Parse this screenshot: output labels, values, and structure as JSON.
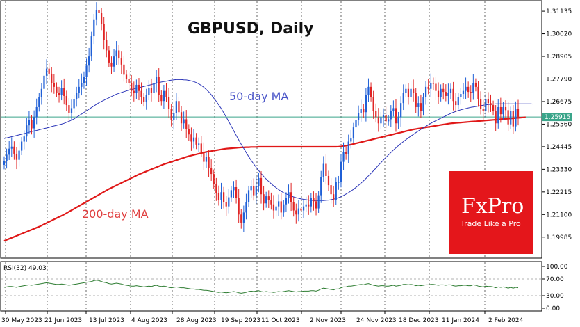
{
  "chart_data": {
    "type": "candlestick",
    "title": "GBPUSD, Daily",
    "symbol": "GBPUSD",
    "timeframe": "Daily",
    "last_price": "1.25915",
    "y_tick_labels": [
      "1.31135",
      "1.30020",
      "1.28905",
      "1.27790",
      "1.26675",
      "1.25560",
      "1.24445",
      "1.23330",
      "1.22215",
      "1.21100",
      "1.19985"
    ],
    "y_ticks": [
      1.31135,
      1.3002,
      1.28905,
      1.2779,
      1.26675,
      1.2556,
      1.24445,
      1.2333,
      1.22215,
      1.211,
      1.19985
    ],
    "ylim": [
      1.1905,
      1.3155
    ],
    "x_tick_labels": [
      "30 May 2023",
      "21 Jun 2023",
      "13 Jul 2023",
      "4 Aug 2023",
      "28 Aug 2023",
      "19 Sep 2023",
      "11 Oct 2023",
      "2 Nov 2023",
      "24 Nov 2023",
      "18 Dec 2023",
      "11 Jan 2024",
      "2 Feb 2024"
    ],
    "annotations": {
      "ma50": "50-day MA",
      "ma200": "200-day MA"
    },
    "colors": {
      "up": "#1f5fd6",
      "down": "#e02424",
      "ma50": "#2b35b8",
      "ma200": "#e01818",
      "last_price_line": "#3aa58a",
      "rsi": "#2e7d32",
      "brand": "#e4161b"
    },
    "rsi": {
      "label": "RSI(32) 49.03",
      "period": 32,
      "value": 49.03,
      "levels": [
        "100.00",
        "70.00",
        "30.00",
        "0.00"
      ]
    },
    "brand": {
      "name": "FxPro",
      "tagline": "Trade Like a Pro"
    },
    "closes": [
      1.2375,
      1.2405,
      1.2435,
      1.2445,
      1.241,
      1.238,
      1.2425,
      1.247,
      1.2495,
      1.255,
      1.2575,
      1.2535,
      1.259,
      1.264,
      1.269,
      1.273,
      1.2795,
      1.283,
      1.2805,
      1.276,
      1.274,
      1.271,
      1.27,
      1.2735,
      1.2695,
      1.265,
      1.261,
      1.2635,
      1.268,
      1.271,
      1.274,
      1.276,
      1.279,
      1.2845,
      1.289,
      1.299,
      1.307,
      1.312,
      1.3105,
      1.305,
      1.297,
      1.292,
      1.286,
      1.284,
      1.289,
      1.292,
      1.288,
      1.285,
      1.28,
      1.278,
      1.276,
      1.272,
      1.271,
      1.275,
      1.272,
      1.269,
      1.2665,
      1.27,
      1.2735,
      1.271,
      1.276,
      1.279,
      1.27,
      1.267,
      1.272,
      1.269,
      1.263,
      1.2575,
      1.261,
      1.267,
      1.2615,
      1.256,
      1.258,
      1.253,
      1.2505,
      1.247,
      1.249,
      1.2455,
      1.246,
      1.242,
      1.237,
      1.2395,
      1.234,
      1.231,
      1.226,
      1.2215,
      1.218,
      1.222,
      1.217,
      1.215,
      1.2195,
      1.223,
      1.2245,
      1.219,
      1.211,
      1.207,
      1.212,
      1.217,
      1.223,
      1.225,
      1.2205,
      1.225,
      1.229,
      1.221,
      1.2165,
      1.22,
      1.218,
      1.216,
      1.213,
      1.215,
      1.2175,
      1.212,
      1.216,
      1.219,
      1.222,
      1.217,
      1.213,
      1.211,
      1.214,
      1.213,
      1.215,
      1.216,
      1.215,
      1.219,
      1.2175,
      1.214,
      1.2205,
      1.2295,
      1.236,
      1.23,
      1.2255,
      1.221,
      1.218,
      1.227,
      1.227,
      1.237,
      1.242,
      1.241,
      1.247,
      1.2485,
      1.254,
      1.2575,
      1.261,
      1.263,
      1.2615,
      1.27,
      1.274,
      1.269,
      1.262,
      1.259,
      1.256,
      1.259,
      1.26,
      1.257,
      1.258,
      1.262,
      1.2635,
      1.256,
      1.259,
      1.266,
      1.271,
      1.273,
      1.269,
      1.273,
      1.271,
      1.264,
      1.266,
      1.262,
      1.269,
      1.274,
      1.273,
      1.276,
      1.2755,
      1.272,
      1.269,
      1.273,
      1.2715,
      1.2695,
      1.271,
      1.273,
      1.267,
      1.265,
      1.269,
      1.2705,
      1.272,
      1.274,
      1.2715,
      1.271,
      1.276,
      1.274,
      1.268,
      1.263,
      1.262,
      1.268,
      1.266,
      1.265,
      1.262,
      1.256,
      1.264,
      1.2605,
      1.264,
      1.2625,
      1.2555,
      1.262,
      1.2545,
      1.263,
      1.2592
    ],
    "ma50": [
      1.2485,
      1.2488,
      1.2491,
      1.2494,
      1.2497,
      1.25,
      1.2503,
      1.2506,
      1.2509,
      1.2512,
      1.2516,
      1.2519,
      1.2522,
      1.2525,
      1.2528,
      1.2531,
      1.2534,
      1.2537,
      1.254,
      1.2544,
      1.2547,
      1.255,
      1.2553,
      1.2556,
      1.256,
      1.2565,
      1.257,
      1.2576,
      1.2582,
      1.259,
      1.2598,
      1.2606,
      1.2614,
      1.2622,
      1.263,
      1.2638,
      1.2646,
      1.2654,
      1.2662,
      1.2668,
      1.2674,
      1.268,
      1.2686,
      1.2692,
      1.2698,
      1.2704,
      1.2708,
      1.2712,
      1.2716,
      1.272,
      1.2724,
      1.2727,
      1.273,
      1.2733,
      1.2736,
      1.2739,
      1.2742,
      1.2745,
      1.2748,
      1.2751,
      1.2755,
      1.2758,
      1.2761,
      1.2764,
      1.2766,
      1.2768,
      1.2771,
      1.2773,
      1.2775,
      1.2776,
      1.2776,
      1.2776,
      1.2775,
      1.2774,
      1.2772,
      1.2769,
      1.2766,
      1.2761,
      1.2755,
      1.2747,
      1.2738,
      1.2727,
      1.2715,
      1.2701,
      1.2685,
      1.2669,
      1.2651,
      1.2633,
      1.2612,
      1.2591,
      1.2569,
      1.2546,
      1.2523,
      1.25,
      1.2478,
      1.2456,
      1.2436,
      1.2416,
      1.2396,
      1.2377,
      1.236,
      1.2343,
      1.2327,
      1.2312,
      1.2298,
      1.2285,
      1.2273,
      1.2262,
      1.2251,
      1.2242,
      1.2233,
      1.2225,
      1.2218,
      1.2212,
      1.2206,
      1.2201,
      1.2197,
      1.2193,
      1.219,
      1.2187,
      1.2185,
      1.2183,
      1.2181,
      1.218,
      1.2179,
      1.2179,
      1.2179,
      1.2179,
      1.2179,
      1.218,
      1.2181,
      1.2183,
      1.2186,
      1.2189,
      1.2193,
      1.2198,
      1.2204,
      1.2211,
      1.2218,
      1.2226,
      1.2234,
      1.2244,
      1.2254,
      1.2265,
      1.2276,
      1.2288,
      1.2301,
      1.2313,
      1.2326,
      1.2339,
      1.2353,
      1.2366,
      1.2379,
      1.2392,
      1.2404,
      1.2416,
      1.2428,
      1.2439,
      1.245,
      1.246,
      1.247,
      1.2479,
      1.2488,
      1.2497,
      1.2505,
      1.2514,
      1.2522,
      1.253,
      1.2538,
      1.2545,
      1.2553,
      1.256,
      1.2567,
      1.2573,
      1.2579,
      1.2585,
      1.2591,
      1.2597,
      1.2603,
      1.2609,
      1.2614,
      1.2619,
      1.2623,
      1.2627,
      1.263,
      1.2633,
      1.2636,
      1.2639,
      1.2641,
      1.2643,
      1.2645,
      1.2647,
      1.2649,
      1.2651,
      1.2653,
      1.2654,
      1.2655,
      1.2656,
      1.2656,
      1.2656,
      1.2656,
      1.2656,
      1.2656,
      1.2656,
      1.2656,
      1.2656,
      1.2656,
      1.2656,
      1.2656,
      1.2656,
      1.2656,
      1.2656,
      1.2655
    ],
    "ma200": [
      1.198,
      1.1985,
      1.199,
      1.1995,
      1.2,
      1.2005,
      1.201,
      1.2015,
      1.202,
      1.2025,
      1.203,
      1.2035,
      1.204,
      1.2045,
      1.205,
      1.2056,
      1.2062,
      1.2068,
      1.2074,
      1.208,
      1.2086,
      1.2092,
      1.2098,
      1.2104,
      1.211,
      1.2117,
      1.2124,
      1.2131,
      1.2138,
      1.2145,
      1.2152,
      1.2159,
      1.2166,
      1.2173,
      1.218,
      1.2187,
      1.2194,
      1.2201,
      1.2208,
      1.2215,
      1.2222,
      1.2229,
      1.2236,
      1.2242,
      1.2248,
      1.2254,
      1.226,
      1.2266,
      1.2272,
      1.2278,
      1.2284,
      1.229,
      1.2296,
      1.2302,
      1.2308,
      1.2313,
      1.2318,
      1.2323,
      1.2328,
      1.2333,
      1.2338,
      1.2343,
      1.2348,
      1.2353,
      1.2358,
      1.2362,
      1.2366,
      1.237,
      1.2374,
      1.2378,
      1.2382,
      1.2386,
      1.239,
      1.2394,
      1.2398,
      1.2401,
      1.2404,
      1.2407,
      1.241,
      1.2413,
      1.2416,
      1.2419,
      1.2421,
      1.2423,
      1.2425,
      1.2427,
      1.2429,
      1.2431,
      1.2433,
      1.2435,
      1.2436,
      1.2437,
      1.2438,
      1.2439,
      1.244,
      1.2441,
      1.2441,
      1.2442,
      1.2442,
      1.2443,
      1.2443,
      1.2443,
      1.2444,
      1.2444,
      1.2444,
      1.2444,
      1.2444,
      1.2444,
      1.2444,
      1.2444,
      1.2444,
      1.2444,
      1.2444,
      1.2444,
      1.2444,
      1.2444,
      1.2444,
      1.2444,
      1.2444,
      1.2444,
      1.2444,
      1.2444,
      1.2444,
      1.2444,
      1.2444,
      1.2444,
      1.2444,
      1.2444,
      1.2444,
      1.2444,
      1.2444,
      1.2444,
      1.2444,
      1.2444,
      1.2445,
      1.2446,
      1.2448,
      1.245,
      1.2452,
      1.2455,
      1.2458,
      1.2461,
      1.2464,
      1.2467,
      1.247,
      1.2473,
      1.2476,
      1.2479,
      1.2482,
      1.2485,
      1.2488,
      1.2491,
      1.2494,
      1.2497,
      1.25,
      1.2503,
      1.2506,
      1.2509,
      1.2512,
      1.2515,
      1.2518,
      1.2521,
      1.2524,
      1.2527,
      1.253,
      1.2532,
      1.2534,
      1.2536,
      1.2538,
      1.254,
      1.2542,
      1.2544,
      1.2546,
      1.2548,
      1.255,
      1.2552,
      1.2554,
      1.2556,
      1.2558,
      1.256,
      1.2561,
      1.2562,
      1.2563,
      1.2564,
      1.2565,
      1.2566,
      1.2567,
      1.2568,
      1.2569,
      1.257,
      1.2571,
      1.2572,
      1.2573,
      1.2574,
      1.2575,
      1.2576,
      1.2577,
      1.2578,
      1.2579,
      1.258,
      1.2581,
      1.2582,
      1.2583,
      1.2584,
      1.2585,
      1.2586,
      1.2587,
      1.2588,
      1.2589,
      1.259
    ],
    "rsi_values": [
      50,
      51,
      52,
      52,
      51,
      50,
      52,
      53,
      54,
      55,
      56,
      55,
      56,
      57,
      58,
      59,
      60,
      61,
      60,
      59,
      58,
      57,
      57,
      58,
      57,
      56,
      55,
      56,
      57,
      58,
      59,
      60,
      61,
      62,
      63,
      64,
      66,
      67,
      66,
      64,
      62,
      61,
      59,
      58,
      59,
      60,
      59,
      58,
      56,
      55,
      54,
      53,
      53,
      54,
      53,
      52,
      51,
      52,
      53,
      52,
      54,
      55,
      53,
      52,
      53,
      52,
      50,
      49,
      50,
      51,
      50,
      49,
      49,
      48,
      47,
      46,
      46,
      45,
      45,
      44,
      43,
      43,
      42,
      41,
      40,
      39,
      38,
      39,
      38,
      37,
      38,
      39,
      40,
      39,
      37,
      36,
      37,
      38,
      40,
      41,
      40,
      41,
      42,
      40,
      39,
      40,
      39,
      39,
      38,
      39,
      40,
      39,
      40,
      41,
      42,
      41,
      40,
      39,
      40,
      40,
      41,
      41,
      41,
      42,
      42,
      41,
      43,
      46,
      48,
      47,
      46,
      45,
      44,
      46,
      46,
      49,
      51,
      51,
      53,
      53,
      54,
      55,
      56,
      57,
      56,
      58,
      59,
      57,
      55,
      54,
      53,
      54,
      54,
      53,
      53,
      54,
      55,
      53,
      54,
      55,
      57,
      57,
      56,
      57,
      56,
      54,
      55,
      54,
      55,
      56,
      56,
      57,
      57,
      56,
      55,
      56,
      56,
      55,
      56,
      56,
      54,
      53,
      54,
      54,
      55,
      55,
      54,
      54,
      56,
      55,
      53,
      52,
      51,
      53,
      52,
      52,
      51,
      49,
      51,
      50,
      51,
      50,
      48,
      50,
      48,
      50,
      49.03
    ]
  }
}
